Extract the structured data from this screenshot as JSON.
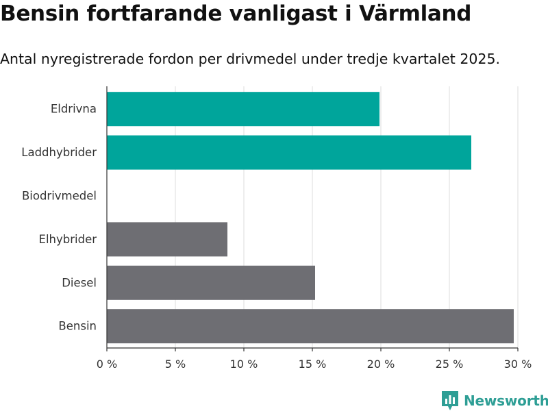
{
  "title": "Bensin fortfarande vanligast i Värmland",
  "subtitle": "Antal nyregistrerade fordon per drivmedel under tredje kvartalet 2025.",
  "brand": {
    "name": "Newsworthy",
    "color": "#2e9e95"
  },
  "colors": {
    "highlight": "#00a59b",
    "other": "#6e6e73",
    "grid": "#dddddd",
    "axis": "#333333"
  },
  "chart_data": {
    "type": "bar",
    "orientation": "horizontal",
    "categories": [
      "Eldrivna",
      "Laddhybrider",
      "Biodrivmedel",
      "Elhybrider",
      "Diesel",
      "Bensin"
    ],
    "values": [
      19.9,
      26.6,
      0,
      8.8,
      15.2,
      29.7
    ],
    "highlight": [
      true,
      true,
      true,
      false,
      false,
      false
    ],
    "xlim": [
      0,
      30
    ],
    "xticks": [
      0,
      5,
      10,
      15,
      20,
      25,
      30
    ],
    "tick_suffix": " %",
    "grid": true
  }
}
